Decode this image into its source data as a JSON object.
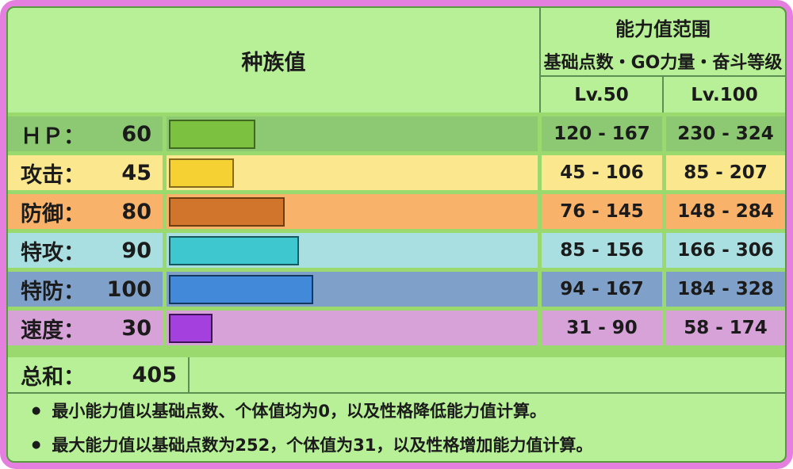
{
  "header": {
    "left_title": "种族值",
    "right_title": "能力值范围",
    "right_subtitle": "基础点数・GO力量・奋斗等级",
    "col_lv50": "Lv.50",
    "col_lv100": "Lv.100"
  },
  "stats": [
    {
      "label": "ＨＰ：",
      "value": 60,
      "lv50": "120 - 167",
      "lv100": "230 - 324",
      "row_color": "#8dc873",
      "bar_color": "#7cc140",
      "bar_border": "#41691e"
    },
    {
      "label": "攻击：",
      "value": 45,
      "lv50": "45 - 106",
      "lv100": "85 - 207",
      "row_color": "#fae78e",
      "bar_color": "#f6d134",
      "bar_border": "#84691a"
    },
    {
      "label": "防御：",
      "value": 80,
      "lv50": "76 - 145",
      "lv100": "148 - 284",
      "row_color": "#f8b269",
      "bar_color": "#d0752b",
      "bar_border": "#6e3d0f"
    },
    {
      "label": "特攻：",
      "value": 90,
      "lv50": "85 - 156",
      "lv100": "166 - 306",
      "row_color": "#a9dfe0",
      "bar_color": "#3fc7cf",
      "bar_border": "#17585e"
    },
    {
      "label": "特防：",
      "value": 100,
      "lv50": "94 - 167",
      "lv100": "184 - 328",
      "row_color": "#7fa0c8",
      "bar_color": "#4289d9",
      "bar_border": "#14375f"
    },
    {
      "label": "速度：",
      "value": 30,
      "lv50": "31 - 90",
      "lv100": "58 - 174",
      "row_color": "#d6a2d8",
      "bar_color": "#a440dd",
      "bar_border": "#401259"
    }
  ],
  "total": {
    "label": "总和：",
    "value": 405
  },
  "notes": [
    "最小能力值以基础点数、个体值均为0，以及性格降低能力值计算。",
    "最大能力值以基础点数为252，个体值为31，以及性格增加能力值计算。"
  ],
  "colors": {
    "frame_pink": "#e57fdf",
    "panel_green": "#b7f096",
    "gap_green": "#9ad96d",
    "divider": "#5d8f55",
    "inner_outline": "#579a40",
    "text": "#1b1b1b"
  },
  "chart_data": {
    "type": "bar",
    "title": "种族值",
    "categories": [
      "ＨＰ",
      "攻击",
      "防御",
      "特攻",
      "特防",
      "速度"
    ],
    "values": [
      60,
      45,
      80,
      90,
      100,
      30
    ],
    "total": 405,
    "xlim": [
      0,
      255
    ],
    "orientation": "horizontal",
    "series": [
      {
        "name": "Lv.50",
        "values": [
          "120 - 167",
          "45 - 106",
          "76 - 145",
          "85 - 156",
          "94 - 167",
          "31 - 90"
        ]
      },
      {
        "name": "Lv.100",
        "values": [
          "230 - 324",
          "85 - 207",
          "148 - 284",
          "166 - 306",
          "184 - 328",
          "58 - 174"
        ]
      }
    ]
  }
}
